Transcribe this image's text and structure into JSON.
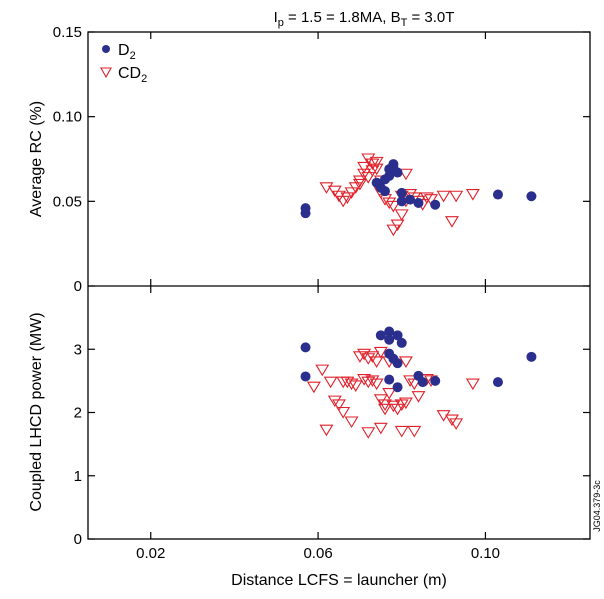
{
  "figure": {
    "title_main": "I",
    "title_sub1": "p",
    "title_mid": " = 1.5 = 1.8MA, B",
    "title_sub2": "T",
    "title_end": " = 3.0T",
    "figure_id": "JG04.379-3c",
    "colors": {
      "d2": "#2a2f8e",
      "cd2": "#e0202a",
      "axis": "#000000"
    }
  },
  "chart_data": [
    {
      "type": "scatter",
      "panel": "top",
      "ylabel": "Average RC (%)",
      "xlabel": "",
      "xlim": [
        0.005,
        0.125
      ],
      "ylim": [
        0,
        0.15
      ],
      "x_ticks": [
        0.02,
        0.06,
        0.1
      ],
      "y_ticks": [
        "0",
        "0.05",
        "0.10",
        "0.15"
      ],
      "y_tick_values": [
        0,
        0.05,
        0.1,
        0.15
      ],
      "legend": {
        "position": "top-left",
        "entries": [
          {
            "main": "D",
            "sub": "2",
            "marker": "filled-circle"
          },
          {
            "main": "CD",
            "sub": "2",
            "marker": "open-triangle-down"
          }
        ]
      },
      "series": [
        {
          "name": "D2",
          "marker": "filled-circle",
          "points": [
            [
              0.057,
              0.043
            ],
            [
              0.057,
              0.046
            ],
            [
              0.074,
              0.061
            ],
            [
              0.075,
              0.058
            ],
            [
              0.076,
              0.063
            ],
            [
              0.077,
              0.065
            ],
            [
              0.077,
              0.069
            ],
            [
              0.078,
              0.07
            ],
            [
              0.078,
              0.072
            ],
            [
              0.079,
              0.067
            ],
            [
              0.076,
              0.056
            ],
            [
              0.08,
              0.055
            ],
            [
              0.08,
              0.05
            ],
            [
              0.082,
              0.051
            ],
            [
              0.084,
              0.049
            ],
            [
              0.088,
              0.048
            ],
            [
              0.103,
              0.054
            ],
            [
              0.111,
              0.053
            ]
          ]
        },
        {
          "name": "CD2",
          "marker": "open-triangle-down",
          "points": [
            [
              0.062,
              0.058
            ],
            [
              0.064,
              0.056
            ],
            [
              0.065,
              0.053
            ],
            [
              0.066,
              0.05
            ],
            [
              0.067,
              0.052
            ],
            [
              0.068,
              0.055
            ],
            [
              0.069,
              0.058
            ],
            [
              0.07,
              0.062
            ],
            [
              0.07,
              0.06
            ],
            [
              0.071,
              0.066
            ],
            [
              0.071,
              0.07
            ],
            [
              0.072,
              0.075
            ],
            [
              0.072,
              0.064
            ],
            [
              0.073,
              0.072
            ],
            [
              0.073,
              0.068
            ],
            [
              0.074,
              0.073
            ],
            [
              0.074,
              0.069
            ],
            [
              0.075,
              0.062
            ],
            [
              0.075,
              0.055
            ],
            [
              0.076,
              0.051
            ],
            [
              0.077,
              0.049
            ],
            [
              0.078,
              0.047
            ],
            [
              0.078,
              0.033
            ],
            [
              0.079,
              0.036
            ],
            [
              0.08,
              0.042
            ],
            [
              0.08,
              0.053
            ],
            [
              0.081,
              0.05
            ],
            [
              0.081,
              0.066
            ],
            [
              0.082,
              0.054
            ],
            [
              0.083,
              0.052
            ],
            [
              0.084,
              0.05
            ],
            [
              0.085,
              0.048
            ],
            [
              0.086,
              0.052
            ],
            [
              0.087,
              0.051
            ],
            [
              0.09,
              0.053
            ],
            [
              0.093,
              0.053
            ],
            [
              0.092,
              0.038
            ],
            [
              0.097,
              0.054
            ]
          ]
        }
      ]
    },
    {
      "type": "scatter",
      "panel": "bottom",
      "ylabel": "Coupled LHCD power (MW)",
      "xlabel": "Distance LCFS = launcher (m)",
      "xlim": [
        0.005,
        0.125
      ],
      "ylim": [
        0,
        4
      ],
      "x_ticks": [
        0.02,
        0.06,
        0.1
      ],
      "x_tick_labels": [
        "0.02",
        "0.06",
        "0.10"
      ],
      "y_ticks": [
        "0",
        "1",
        "2",
        "3"
      ],
      "y_tick_values": [
        0,
        1,
        2,
        3
      ],
      "series": [
        {
          "name": "D2",
          "marker": "filled-circle",
          "points": [
            [
              0.057,
              3.03
            ],
            [
              0.057,
              2.57
            ],
            [
              0.075,
              3.22
            ],
            [
              0.077,
              3.28
            ],
            [
              0.077,
              3.15
            ],
            [
              0.079,
              3.22
            ],
            [
              0.08,
              3.1
            ],
            [
              0.077,
              2.93
            ],
            [
              0.078,
              2.85
            ],
            [
              0.079,
              2.78
            ],
            [
              0.077,
              2.52
            ],
            [
              0.079,
              2.4
            ],
            [
              0.084,
              2.58
            ],
            [
              0.085,
              2.48
            ],
            [
              0.088,
              2.5
            ],
            [
              0.103,
              2.48
            ],
            [
              0.111,
              2.88
            ]
          ]
        },
        {
          "name": "CD2",
          "marker": "open-triangle-down",
          "points": [
            [
              0.059,
              2.4
            ],
            [
              0.061,
              2.67
            ],
            [
              0.063,
              2.48
            ],
            [
              0.064,
              2.18
            ],
            [
              0.065,
              2.12
            ],
            [
              0.066,
              2.0
            ],
            [
              0.066,
              2.48
            ],
            [
              0.067,
              2.48
            ],
            [
              0.068,
              2.45
            ],
            [
              0.069,
              2.42
            ],
            [
              0.07,
              2.88
            ],
            [
              0.071,
              2.92
            ],
            [
              0.072,
              2.85
            ],
            [
              0.073,
              2.88
            ],
            [
              0.074,
              2.8
            ],
            [
              0.075,
              2.95
            ],
            [
              0.071,
              2.52
            ],
            [
              0.072,
              2.48
            ],
            [
              0.073,
              2.5
            ],
            [
              0.074,
              2.45
            ],
            [
              0.075,
              2.2
            ],
            [
              0.076,
              2.12
            ],
            [
              0.076,
              2.05
            ],
            [
              0.077,
              2.3
            ],
            [
              0.078,
              2.1
            ],
            [
              0.079,
              2.05
            ],
            [
              0.08,
              2.12
            ],
            [
              0.081,
              2.15
            ],
            [
              0.082,
              2.5
            ],
            [
              0.083,
              2.45
            ],
            [
              0.084,
              2.25
            ],
            [
              0.086,
              2.52
            ],
            [
              0.087,
              2.5
            ],
            [
              0.09,
              1.95
            ],
            [
              0.092,
              1.88
            ],
            [
              0.093,
              1.82
            ],
            [
              0.062,
              1.72
            ],
            [
              0.068,
              1.85
            ],
            [
              0.072,
              1.68
            ],
            [
              0.075,
              1.75
            ],
            [
              0.08,
              1.7
            ],
            [
              0.083,
              1.7
            ],
            [
              0.077,
              2.8
            ],
            [
              0.081,
              2.8
            ],
            [
              0.097,
              2.45
            ]
          ]
        }
      ]
    }
  ]
}
